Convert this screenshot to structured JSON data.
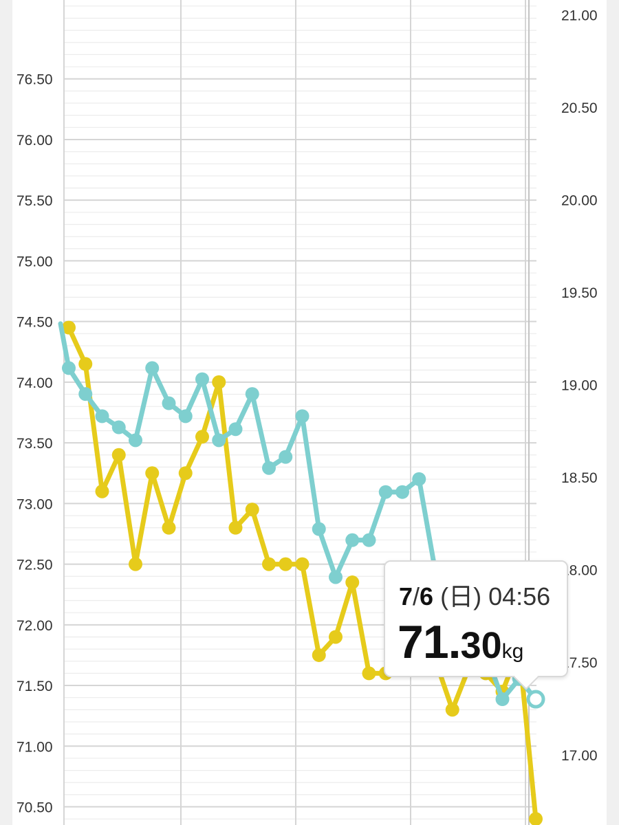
{
  "colors": {
    "weight_series": "#e6cb1b",
    "bmi_series": "#7ecfcf",
    "grid": "#d5d5d5",
    "page_background": "#f0f0f0",
    "tick_text": "#333333"
  },
  "chart_data": {
    "type": "line",
    "left_axis": {
      "range": [
        70.35,
        77.15
      ],
      "ticks": [
        "70.50",
        "71.00",
        "71.50",
        "72.00",
        "72.50",
        "73.00",
        "73.50",
        "74.00",
        "74.50",
        "75.00",
        "75.50",
        "76.00",
        "76.50"
      ]
    },
    "right_axis": {
      "range": [
        16.62,
        21.08
      ],
      "ticks": [
        "17.00",
        "17.50",
        "18.00",
        "18.50",
        "19.00",
        "19.50",
        "20.00",
        "20.50",
        "21.00"
      ]
    },
    "grid": true,
    "series": [
      {
        "axis": "left",
        "color": "#e6cb1b",
        "points": [
          {
            "x": 0,
            "y": 74.45
          },
          {
            "x": 1,
            "y": 74.15
          },
          {
            "x": 2,
            "y": 73.1
          },
          {
            "x": 3,
            "y": 73.4
          },
          {
            "x": 4,
            "y": 72.5
          },
          {
            "x": 5,
            "y": 73.25
          },
          {
            "x": 6,
            "y": 72.8
          },
          {
            "x": 7,
            "y": 73.25
          },
          {
            "x": 8,
            "y": 73.55
          },
          {
            "x": 9,
            "y": 74.0
          },
          {
            "x": 10,
            "y": 72.8
          },
          {
            "x": 11,
            "y": 72.95
          },
          {
            "x": 12,
            "y": 72.5
          },
          {
            "x": 13,
            "y": 72.5
          },
          {
            "x": 14,
            "y": 72.5
          },
          {
            "x": 15,
            "y": 71.75
          },
          {
            "x": 16,
            "y": 71.9
          },
          {
            "x": 17,
            "y": 72.35
          },
          {
            "x": 18,
            "y": 71.6
          },
          {
            "x": 19,
            "y": 71.6
          },
          {
            "x": 20,
            "y": 71.9
          },
          {
            "x": 21,
            "y": 71.9
          },
          {
            "x": 22,
            "y": 71.7
          },
          {
            "x": 23,
            "y": 71.3
          },
          {
            "x": 24,
            "y": 71.65
          },
          {
            "x": 25,
            "y": 71.6
          },
          {
            "x": 26,
            "y": 71.45
          },
          {
            "x": 27,
            "y": 71.8
          },
          {
            "x": 28,
            "y": 70.4
          }
        ]
      },
      {
        "axis": "right",
        "color": "#7ecfcf",
        "points": [
          {
            "x": 0,
            "y": 19.09
          },
          {
            "x": 1,
            "y": 18.95
          },
          {
            "x": 2,
            "y": 18.83
          },
          {
            "x": 3,
            "y": 18.77
          },
          {
            "x": 4,
            "y": 18.7
          },
          {
            "x": 5,
            "y": 19.09
          },
          {
            "x": 6,
            "y": 18.9
          },
          {
            "x": 7,
            "y": 18.83
          },
          {
            "x": 8,
            "y": 19.03
          },
          {
            "x": 9,
            "y": 18.7
          },
          {
            "x": 10,
            "y": 18.76
          },
          {
            "x": 11,
            "y": 18.95
          },
          {
            "x": 12,
            "y": 18.55
          },
          {
            "x": 13,
            "y": 18.61
          },
          {
            "x": 14,
            "y": 18.83
          },
          {
            "x": 15,
            "y": 18.22
          },
          {
            "x": 16,
            "y": 17.96
          },
          {
            "x": 17,
            "y": 18.16
          },
          {
            "x": 18,
            "y": 18.16
          },
          {
            "x": 19,
            "y": 18.42
          },
          {
            "x": 20,
            "y": 18.42
          },
          {
            "x": 21,
            "y": 18.49
          },
          {
            "x": 22,
            "y": 17.98
          },
          {
            "x": 23,
            "y": 17.93
          },
          {
            "x": 24,
            "y": 17.72
          },
          {
            "x": 25,
            "y": 17.55
          },
          {
            "x": 26,
            "y": 17.3
          },
          {
            "x": 27,
            "y": 17.41
          },
          {
            "x": 28,
            "y": 17.3
          }
        ]
      }
    ]
  },
  "tooltip": {
    "month": "7",
    "separator": "/",
    "day": "6",
    "weekday": "(日)",
    "time": "04:56",
    "value_int": "71.",
    "value_dec": "30",
    "unit": "kg"
  }
}
